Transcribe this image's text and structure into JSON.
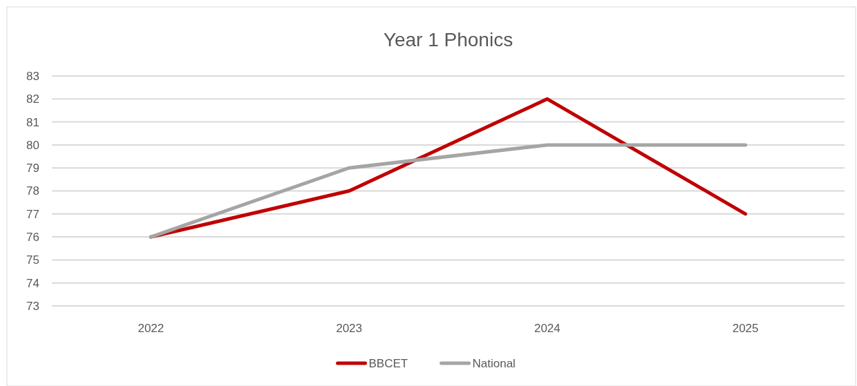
{
  "chart_data": {
    "type": "line",
    "title": "Year 1 Phonics",
    "categories": [
      "2022",
      "2023",
      "2024",
      "2025"
    ],
    "series": [
      {
        "name": "BBCET",
        "color": "#c00000",
        "values": [
          76,
          78,
          82,
          77
        ]
      },
      {
        "name": "National",
        "color": "#a5a5a5",
        "values": [
          76,
          79,
          80,
          80
        ]
      }
    ],
    "ylim": [
      73,
      83
    ],
    "yticks": [
      73,
      74,
      75,
      76,
      77,
      78,
      79,
      80,
      81,
      82,
      83
    ],
    "grid": "y",
    "legend": "bottom",
    "marker": "none",
    "line_style": "solid"
  }
}
